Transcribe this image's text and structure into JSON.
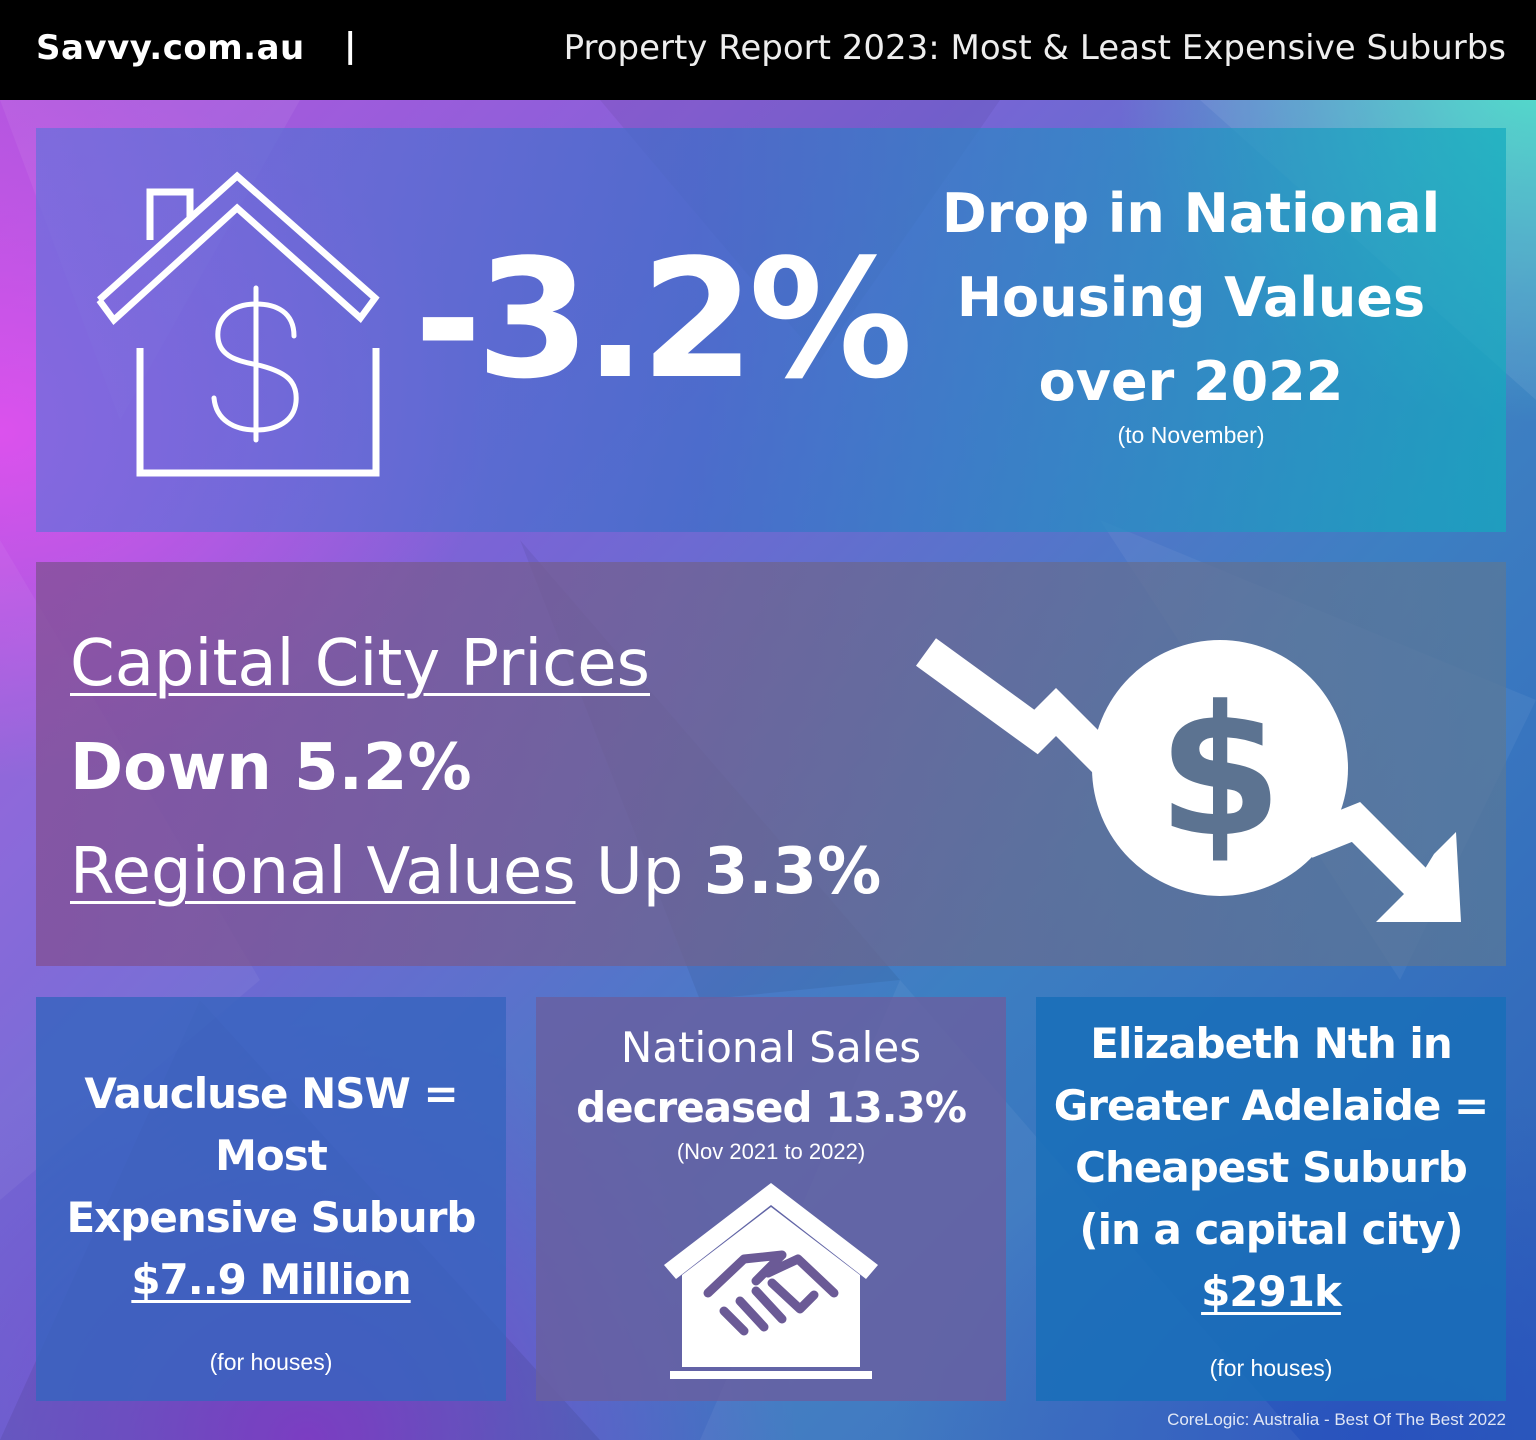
{
  "header": {
    "brand": "Savvy.com.au",
    "divider": "|",
    "title": "Property Report 2023: Most & Least Expensive Suburbs"
  },
  "national": {
    "icon": "house-dollar-icon",
    "value": "-3.2%",
    "headline_line1": "Drop in National",
    "headline_line2": "Housing Values",
    "headline_line3": "over 2022",
    "note": "(to November)"
  },
  "prices": {
    "capital_label": "Capital City Prices",
    "capital_value": "Down 5.2%",
    "regional_label": "Regional Values",
    "regional_direction": " Up ",
    "regional_value": "3.3%",
    "icon": "falling-dollar-arrow-icon"
  },
  "most_expensive": {
    "line1": "Vaucluse NSW =",
    "line2": "Most",
    "line3": "Expensive Suburb",
    "price": "$7..9 Million",
    "note": "(for houses)"
  },
  "sales": {
    "line1": "National Sales",
    "line2": "decreased 13.3%",
    "note": "(Nov 2021 to 2022)",
    "icon": "handshake-house-icon"
  },
  "cheapest": {
    "line1": "Elizabeth Nth in",
    "line2": "Greater Adelaide =",
    "line3": "Cheapest Suburb",
    "line4": "(in a capital city)",
    "price": "$291k",
    "note": "(for houses)"
  },
  "source": "CoreLogic: Australia - Best Of The Best 2022"
}
